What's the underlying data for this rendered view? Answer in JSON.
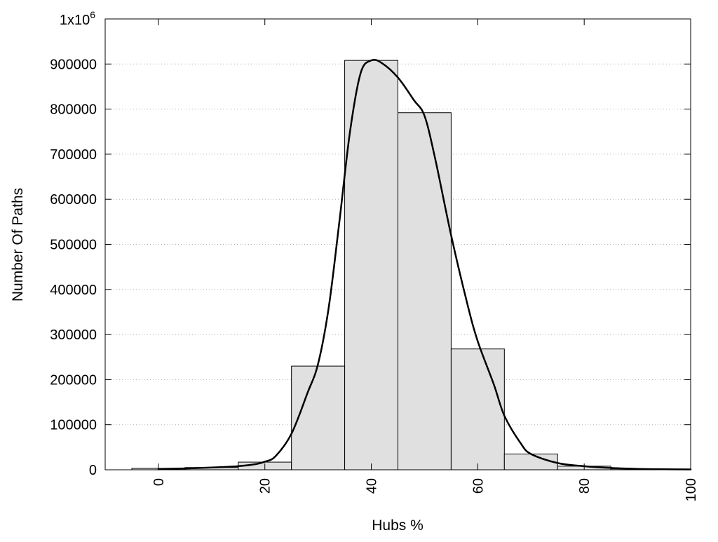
{
  "chart_data": {
    "type": "bar",
    "title": "",
    "xlabel": "Hubs %",
    "ylabel": "Number Of Paths",
    "xlim": [
      -10,
      100
    ],
    "ylim": [
      0,
      1000000
    ],
    "x_ticks": [
      0,
      20,
      40,
      60,
      80,
      100
    ],
    "y_ticks": [
      0,
      100000,
      200000,
      300000,
      400000,
      500000,
      600000,
      700000,
      800000,
      900000
    ],
    "y_top_label_base": "1x10",
    "y_top_label_exponent": "6",
    "grid": "horizontal dotted",
    "bin_width": 10,
    "bins": [
      {
        "center": 0,
        "value": 3000
      },
      {
        "center": 10,
        "value": 5000
      },
      {
        "center": 20,
        "value": 17000
      },
      {
        "center": 30,
        "value": 230000
      },
      {
        "center": 40,
        "value": 908000
      },
      {
        "center": 50,
        "value": 792000
      },
      {
        "center": 60,
        "value": 268000
      },
      {
        "center": 70,
        "value": 35000
      },
      {
        "center": 80,
        "value": 8000
      },
      {
        "center": 90,
        "value": 2000
      }
    ],
    "fit_curve": [
      {
        "x": 0,
        "y": 2000
      },
      {
        "x": 5,
        "y": 3000
      },
      {
        "x": 10,
        "y": 5000
      },
      {
        "x": 15,
        "y": 8000
      },
      {
        "x": 18,
        "y": 12000
      },
      {
        "x": 20,
        "y": 18000
      },
      {
        "x": 22,
        "y": 30000
      },
      {
        "x": 25,
        "y": 80000
      },
      {
        "x": 28,
        "y": 170000
      },
      {
        "x": 30,
        "y": 235000
      },
      {
        "x": 32,
        "y": 360000
      },
      {
        "x": 34,
        "y": 550000
      },
      {
        "x": 36,
        "y": 750000
      },
      {
        "x": 38,
        "y": 880000
      },
      {
        "x": 40,
        "y": 908000
      },
      {
        "x": 42,
        "y": 902000
      },
      {
        "x": 45,
        "y": 870000
      },
      {
        "x": 48,
        "y": 820000
      },
      {
        "x": 50,
        "y": 785000
      },
      {
        "x": 52,
        "y": 690000
      },
      {
        "x": 55,
        "y": 520000
      },
      {
        "x": 58,
        "y": 370000
      },
      {
        "x": 60,
        "y": 285000
      },
      {
        "x": 63,
        "y": 190000
      },
      {
        "x": 65,
        "y": 120000
      },
      {
        "x": 68,
        "y": 60000
      },
      {
        "x": 70,
        "y": 35000
      },
      {
        "x": 75,
        "y": 15000
      },
      {
        "x": 80,
        "y": 8000
      },
      {
        "x": 85,
        "y": 4000
      },
      {
        "x": 90,
        "y": 2000
      },
      {
        "x": 95,
        "y": 1200
      },
      {
        "x": 100,
        "y": 800
      }
    ],
    "colors": {
      "bar_fill": "#e0e0e0",
      "bar_stroke": "#000000",
      "curve": "#000000",
      "grid": "#b0b0b0",
      "frame": "#000000"
    }
  }
}
